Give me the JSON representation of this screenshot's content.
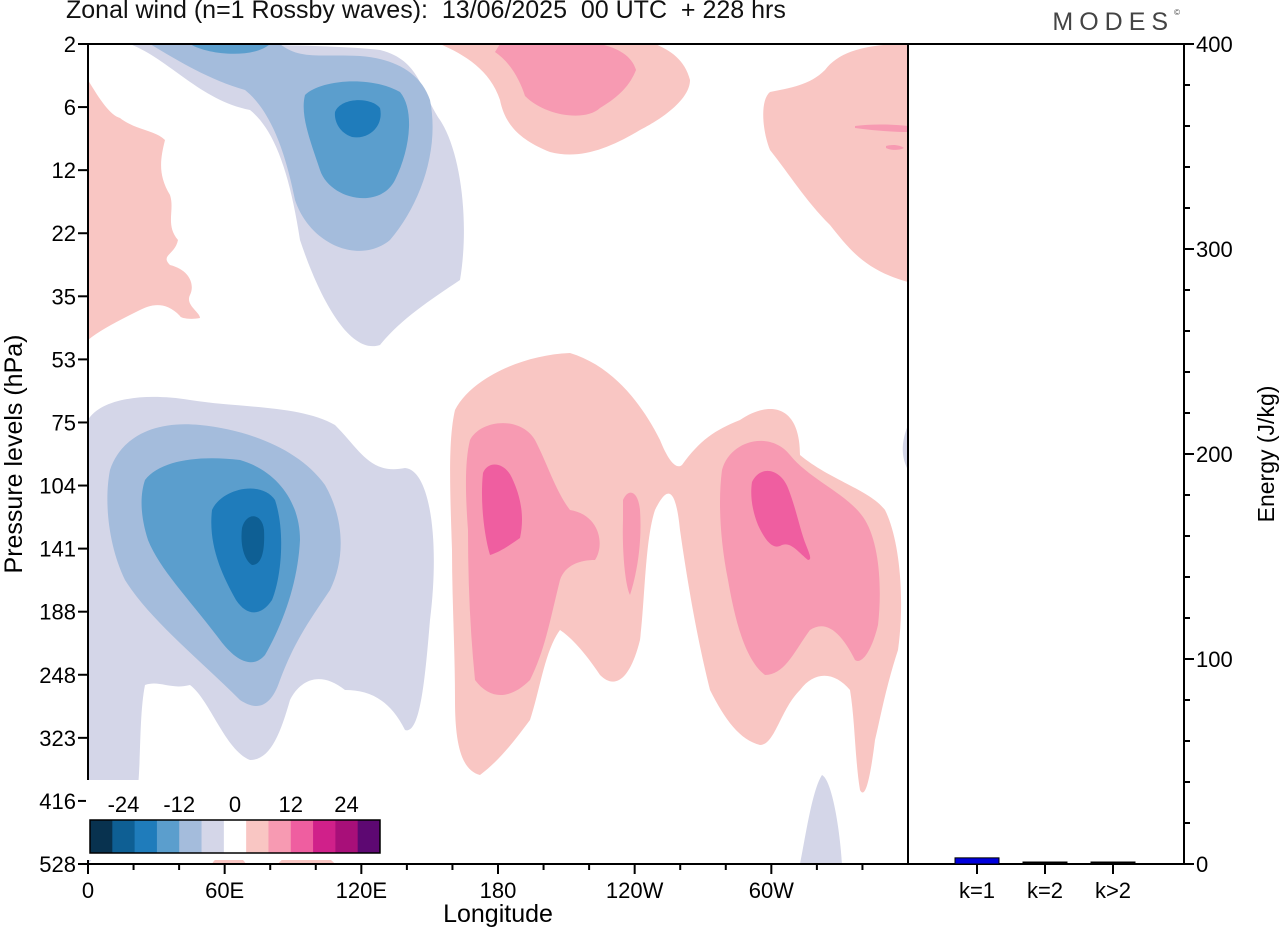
{
  "title": "Zonal wind (n=1 Rossby waves):  13/06/2025  00 UTC  + 228 hrs",
  "brand": {
    "text": "MODES",
    "mark": "©"
  },
  "chart_data": [
    {
      "type": "heatmap",
      "title": "Zonal wind (n=1 Rossby waves):  13/06/2025  00 UTC  + 228 hrs",
      "xlabel": "Longitude",
      "ylabel": "Pressure levels (hPa)",
      "x_ticks": [
        "0",
        "60E",
        "120E",
        "180",
        "120W",
        "60W"
      ],
      "y_ticks": [
        "2",
        "6",
        "12",
        "22",
        "35",
        "53",
        "75",
        "104",
        "141",
        "188",
        "248",
        "323",
        "416",
        "528"
      ],
      "colorbar": {
        "labels": [
          "-24",
          "-12",
          "0",
          "12",
          "24"
        ],
        "colors": [
          "#08324f",
          "#0e5f94",
          "#1f7cbb",
          "#5b9ecd",
          "#a4bcdc",
          "#d4d6e8",
          "#ffffff",
          "#f9c6c3",
          "#f79ab2",
          "#ef5ea0",
          "#d0208a",
          "#a80f79",
          "#5d0872"
        ]
      },
      "regions": [
        {
          "sign": "negative",
          "peak": -24,
          "lon": 72,
          "level": 141
        },
        {
          "sign": "negative",
          "peak": -18,
          "lon": 120,
          "level": 6
        },
        {
          "sign": "positive",
          "peak": 12,
          "lon": 180,
          "level": 104
        },
        {
          "sign": "positive",
          "peak": 12,
          "lon": 57,
          "lon_unit": "W",
          "level": 104
        },
        {
          "sign": "positive",
          "peak": 6,
          "lon": 160,
          "lon_unit": "W",
          "level": 6
        },
        {
          "sign": "positive",
          "peak": 6,
          "lon": 20,
          "level": 12
        },
        {
          "sign": "positive",
          "peak": 6,
          "lon": 25,
          "lon_unit": "W",
          "level": 6
        }
      ]
    },
    {
      "type": "bar",
      "categories": [
        "k=1",
        "k=2",
        "k>2"
      ],
      "values": [
        3,
        0.5,
        0.5
      ],
      "colors": [
        "#0000dd",
        "#000000",
        "#000000"
      ],
      "ylabel": "Energy (J/kg)",
      "y_ticks": [
        "0",
        "100",
        "200",
        "300",
        "400"
      ],
      "ylim": [
        0,
        400
      ]
    }
  ]
}
